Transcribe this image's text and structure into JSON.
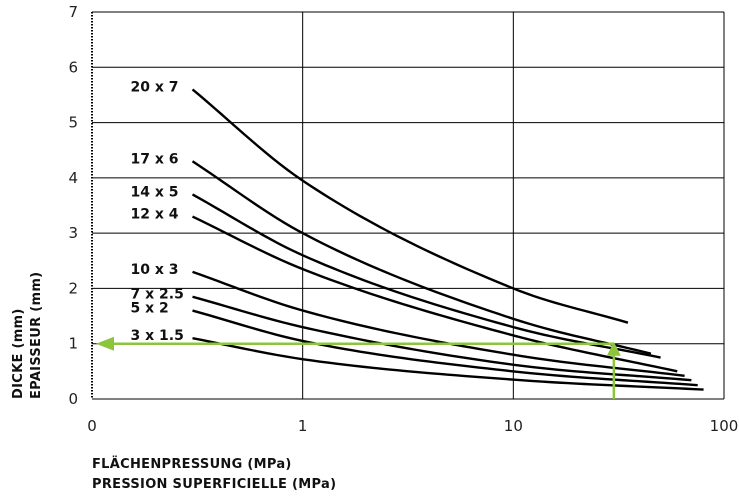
{
  "chart_data": {
    "type": "line",
    "x_scale": "log",
    "y_scale": "linear",
    "xlim": [
      0.1,
      100
    ],
    "ylim": [
      0,
      7
    ],
    "x_ticks": [
      {
        "value": 0.1,
        "label": "0"
      },
      {
        "value": 1,
        "label": "1"
      },
      {
        "value": 10,
        "label": "10"
      },
      {
        "value": 100,
        "label": "100"
      }
    ],
    "y_ticks": [
      0,
      1,
      2,
      3,
      4,
      5,
      6,
      7
    ],
    "grid": true,
    "xlabel_lines": [
      "FLÄCHENPRESSUNG (MPa)",
      "PRESSION SUPERFICIELLE (MPa)"
    ],
    "ylabel_lines": [
      "DICKE (mm)",
      "EPAISSEUR (mm)"
    ],
    "series": [
      {
        "name": "20 x 7",
        "x": [
          0.3,
          1,
          10,
          35
        ],
        "y": [
          5.6,
          3.95,
          2.0,
          1.38
        ]
      },
      {
        "name": "17 x 6",
        "x": [
          0.3,
          1,
          10,
          45
        ],
        "y": [
          4.3,
          3.0,
          1.45,
          0.82
        ]
      },
      {
        "name": "14 x 5",
        "x": [
          0.3,
          1,
          10,
          50
        ],
        "y": [
          3.7,
          2.6,
          1.3,
          0.75
        ]
      },
      {
        "name": "12 x 4",
        "x": [
          0.3,
          1,
          10,
          60
        ],
        "y": [
          3.3,
          2.35,
          1.15,
          0.5
        ]
      },
      {
        "name": "10 x 3",
        "x": [
          0.3,
          1,
          10,
          65
        ],
        "y": [
          2.3,
          1.6,
          0.8,
          0.42
        ]
      },
      {
        "name": "7 x 2.5",
        "x": [
          0.3,
          1,
          10,
          70
        ],
        "y": [
          1.85,
          1.3,
          0.62,
          0.34
        ]
      },
      {
        "name": "5 x 2",
        "x": [
          0.3,
          1,
          10,
          75
        ],
        "y": [
          1.6,
          1.05,
          0.5,
          0.25
        ]
      },
      {
        "name": "3 x 1.5",
        "x": [
          0.3,
          1,
          10,
          80
        ],
        "y": [
          1.1,
          0.72,
          0.35,
          0.17
        ]
      }
    ],
    "annotation": {
      "type": "arrows",
      "color": "#8cc43c",
      "vertical": {
        "x": 30,
        "y_from": 0,
        "y_to": 1.0
      },
      "horizontal": {
        "y": 1.0,
        "x_from": 30,
        "x_to": 0.1
      }
    }
  }
}
